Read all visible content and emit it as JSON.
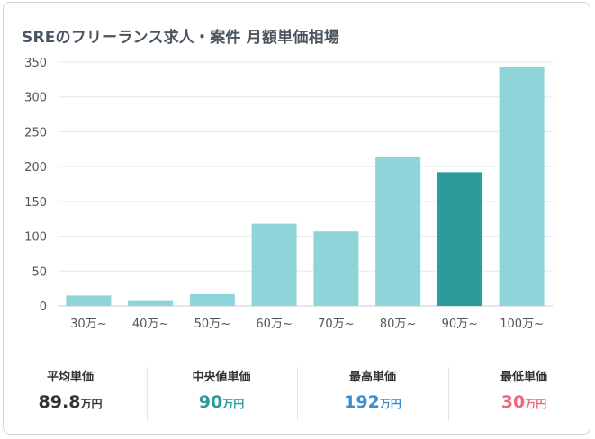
{
  "title": "SREのフリーランス求人・案件 月額単価相場",
  "colors": {
    "bar": "#8ed5da",
    "bar_highlight": "#2e9a9a",
    "grid": "#e6e9ec",
    "axis_text": "#555555",
    "avg": "#333333",
    "median": "#2e9a9a",
    "max": "#3d8fcf",
    "min": "#ec6a80"
  },
  "chart_data": {
    "type": "bar",
    "title": "SREのフリーランス求人・案件 月額単価相場",
    "xlabel": "",
    "ylabel": "",
    "categories": [
      "30万~",
      "40万~",
      "50万~",
      "60万~",
      "70万~",
      "80万~",
      "90万~",
      "100万~"
    ],
    "values": [
      15,
      7,
      17,
      118,
      107,
      214,
      192,
      343
    ],
    "highlight_category": "90万~",
    "ylim": [
      0,
      350
    ],
    "yticks": [
      0,
      50,
      100,
      150,
      200,
      250,
      300,
      350
    ],
    "grid": true,
    "legend": "none"
  },
  "stats": [
    {
      "label": "平均単価",
      "value": "89.8",
      "unit": "万円",
      "color_key": "avg"
    },
    {
      "label": "中央値単価",
      "value": "90",
      "unit": "万円",
      "color_key": "median"
    },
    {
      "label": "最高単価",
      "value": "192",
      "unit": "万円",
      "color_key": "max"
    },
    {
      "label": "最低単価",
      "value": "30",
      "unit": "万円",
      "color_key": "min"
    }
  ]
}
